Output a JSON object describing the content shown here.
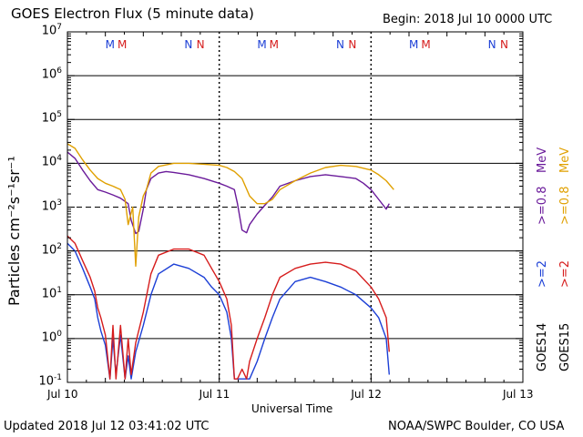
{
  "header": {
    "title": "GOES Electron Flux (5 minute data)",
    "begin": "Begin: 2018 Jul 10 0000 UTC"
  },
  "footer": {
    "updated": "Updated 2018 Jul 12 03:41:02 UTC",
    "credit": "NOAA/SWPC Boulder, CO USA"
  },
  "chart_data": {
    "type": "line",
    "title": "GOES Electron Flux (5 minute data)",
    "xlabel": "Universal Time",
    "ylabel": "Particles cm⁻²s⁻¹sr⁻¹",
    "y_scale": "log",
    "ylim": [
      0.1,
      10000000
    ],
    "xlim_days": [
      0,
      3
    ],
    "x_ticks": [
      {
        "day": 0,
        "label": "Jul 10"
      },
      {
        "day": 1,
        "label": "Jul 11"
      },
      {
        "day": 2,
        "label": "Jul 12"
      },
      {
        "day": 3,
        "label": "Jul 13"
      }
    ],
    "y_ticks": [
      {
        "base": "10",
        "exp": "-1"
      },
      {
        "base": "10",
        "exp": "0"
      },
      {
        "base": "10",
        "exp": "1"
      },
      {
        "base": "10",
        "exp": "2"
      },
      {
        "base": "10",
        "exp": "3"
      },
      {
        "base": "10",
        "exp": "4"
      },
      {
        "base": "10",
        "exp": "5"
      },
      {
        "base": "10",
        "exp": "6"
      },
      {
        "base": "10",
        "exp": "7"
      }
    ],
    "threshold": 1000,
    "markers": [
      {
        "day": 0.28,
        "label": "M",
        "color": "#1c3fd6"
      },
      {
        "day": 0.36,
        "label": "M",
        "color": "#d61c1c"
      },
      {
        "day": 0.8,
        "label": "N",
        "color": "#1c3fd6"
      },
      {
        "day": 0.88,
        "label": "N",
        "color": "#d61c1c"
      },
      {
        "day": 1.28,
        "label": "M",
        "color": "#1c3fd6"
      },
      {
        "day": 1.36,
        "label": "M",
        "color": "#d61c1c"
      },
      {
        "day": 1.8,
        "label": "N",
        "color": "#1c3fd6"
      },
      {
        "day": 1.88,
        "label": "N",
        "color": "#d61c1c"
      },
      {
        "day": 2.28,
        "label": "M",
        "color": "#1c3fd6"
      },
      {
        "day": 2.36,
        "label": "M",
        "color": "#d61c1c"
      },
      {
        "day": 2.8,
        "label": "N",
        "color": "#1c3fd6"
      },
      {
        "day": 2.88,
        "label": "N",
        "color": "#d61c1c"
      }
    ],
    "legend": {
      "satellites": [
        {
          "text": "GOES14"
        },
        {
          "text": "GOES15"
        }
      ],
      "energies": [
        {
          "text": ">=2",
          "color": "#1c3fd6"
        },
        {
          "text": ">=2",
          "color": "#d61c1c"
        },
        {
          "text": ">=0.8",
          "color": "#6a1a9a"
        },
        {
          "text": ">=0.8",
          "color": "#e0a000"
        }
      ],
      "units": [
        {
          "text": "MeV",
          "color": "#6a1a9a"
        },
        {
          "text": "MeV",
          "color": "#e0a000"
        }
      ]
    },
    "series": [
      {
        "name": "GOES14 >=0.8 MeV",
        "color": "#6a1a9a",
        "x": [
          0,
          0.05,
          0.1,
          0.15,
          0.2,
          0.25,
          0.3,
          0.35,
          0.4,
          0.42,
          0.45,
          0.47,
          0.5,
          0.52,
          0.55,
          0.6,
          0.65,
          0.7,
          0.8,
          0.9,
          1.0,
          1.05,
          1.1,
          1.12,
          1.15,
          1.18,
          1.2,
          1.25,
          1.3,
          1.35,
          1.4,
          1.5,
          1.6,
          1.7,
          1.8,
          1.9,
          1.95,
          2.0,
          2.05,
          2.1,
          2.12
        ],
        "y": [
          18000,
          13000,
          7000,
          4000,
          2500,
          2200,
          1900,
          1600,
          1200,
          500,
          250,
          280,
          900,
          2500,
          4500,
          6000,
          6500,
          6200,
          5500,
          4500,
          3500,
          3000,
          2500,
          1200,
          300,
          260,
          400,
          700,
          1100,
          1700,
          3000,
          4000,
          5000,
          5500,
          5000,
          4500,
          3500,
          2500,
          1500,
          900,
          1200
        ]
      },
      {
        "name": "GOES15 >=0.8 MeV",
        "color": "#e0a000",
        "x": [
          0,
          0.05,
          0.1,
          0.15,
          0.2,
          0.25,
          0.3,
          0.35,
          0.38,
          0.4,
          0.43,
          0.45,
          0.47,
          0.5,
          0.52,
          0.55,
          0.6,
          0.7,
          0.8,
          0.9,
          1.0,
          1.05,
          1.1,
          1.15,
          1.2,
          1.25,
          1.3,
          1.35,
          1.4,
          1.5,
          1.6,
          1.7,
          1.8,
          1.9,
          2.0,
          2.05,
          2.1,
          2.15
        ],
        "y": [
          28000,
          22000,
          12000,
          7000,
          4500,
          3500,
          3000,
          2500,
          1500,
          400,
          1000,
          45,
          600,
          1800,
          2500,
          6000,
          8500,
          10000,
          10000,
          9500,
          9000,
          8000,
          6500,
          4500,
          1800,
          1200,
          1200,
          1500,
          2500,
          4000,
          6000,
          8000,
          9000,
          8500,
          7000,
          5500,
          4000,
          2500
        ]
      },
      {
        "name": "GOES14 >=2 MeV",
        "color": "#1c3fd6",
        "x": [
          0,
          0.05,
          0.1,
          0.15,
          0.18,
          0.2,
          0.22,
          0.25,
          0.28,
          0.3,
          0.32,
          0.35,
          0.38,
          0.4,
          0.42,
          0.45,
          0.5,
          0.55,
          0.6,
          0.7,
          0.8,
          0.9,
          0.95,
          1.0,
          1.05,
          1.08,
          1.1,
          1.12,
          1.15,
          1.18,
          1.2,
          1.25,
          1.3,
          1.35,
          1.4,
          1.5,
          1.6,
          1.7,
          1.8,
          1.9,
          2.0,
          2.05,
          2.1,
          2.12
        ],
        "y": [
          150,
          100,
          40,
          15,
          8,
          3,
          1.5,
          0.7,
          0.12,
          1,
          0.15,
          1.2,
          0.12,
          0.4,
          0.12,
          0.5,
          2,
          10,
          30,
          50,
          40,
          25,
          15,
          10,
          4,
          1,
          0.12,
          0.12,
          0.12,
          0.12,
          0.12,
          0.3,
          1,
          3,
          8,
          20,
          25,
          20,
          15,
          10,
          5,
          3,
          1,
          0.15
        ]
      },
      {
        "name": "GOES15 >=2 MeV",
        "color": "#d61c1c",
        "x": [
          0,
          0.05,
          0.1,
          0.15,
          0.18,
          0.2,
          0.22,
          0.25,
          0.28,
          0.3,
          0.32,
          0.35,
          0.38,
          0.4,
          0.42,
          0.45,
          0.5,
          0.55,
          0.6,
          0.7,
          0.8,
          0.9,
          0.95,
          1.0,
          1.05,
          1.08,
          1.1,
          1.12,
          1.15,
          1.18,
          1.2,
          1.25,
          1.3,
          1.35,
          1.4,
          1.5,
          1.6,
          1.7,
          1.8,
          1.9,
          2.0,
          2.05,
          2.1,
          2.12
        ],
        "y": [
          220,
          150,
          60,
          25,
          12,
          5,
          3,
          1.2,
          0.12,
          2,
          0.12,
          2,
          0.12,
          1,
          0.15,
          0.8,
          4,
          30,
          80,
          110,
          110,
          80,
          40,
          20,
          8,
          2,
          0.12,
          0.12,
          0.2,
          0.12,
          0.3,
          1,
          3,
          10,
          25,
          40,
          50,
          55,
          50,
          35,
          15,
          8,
          3,
          0.5
        ]
      }
    ]
  }
}
